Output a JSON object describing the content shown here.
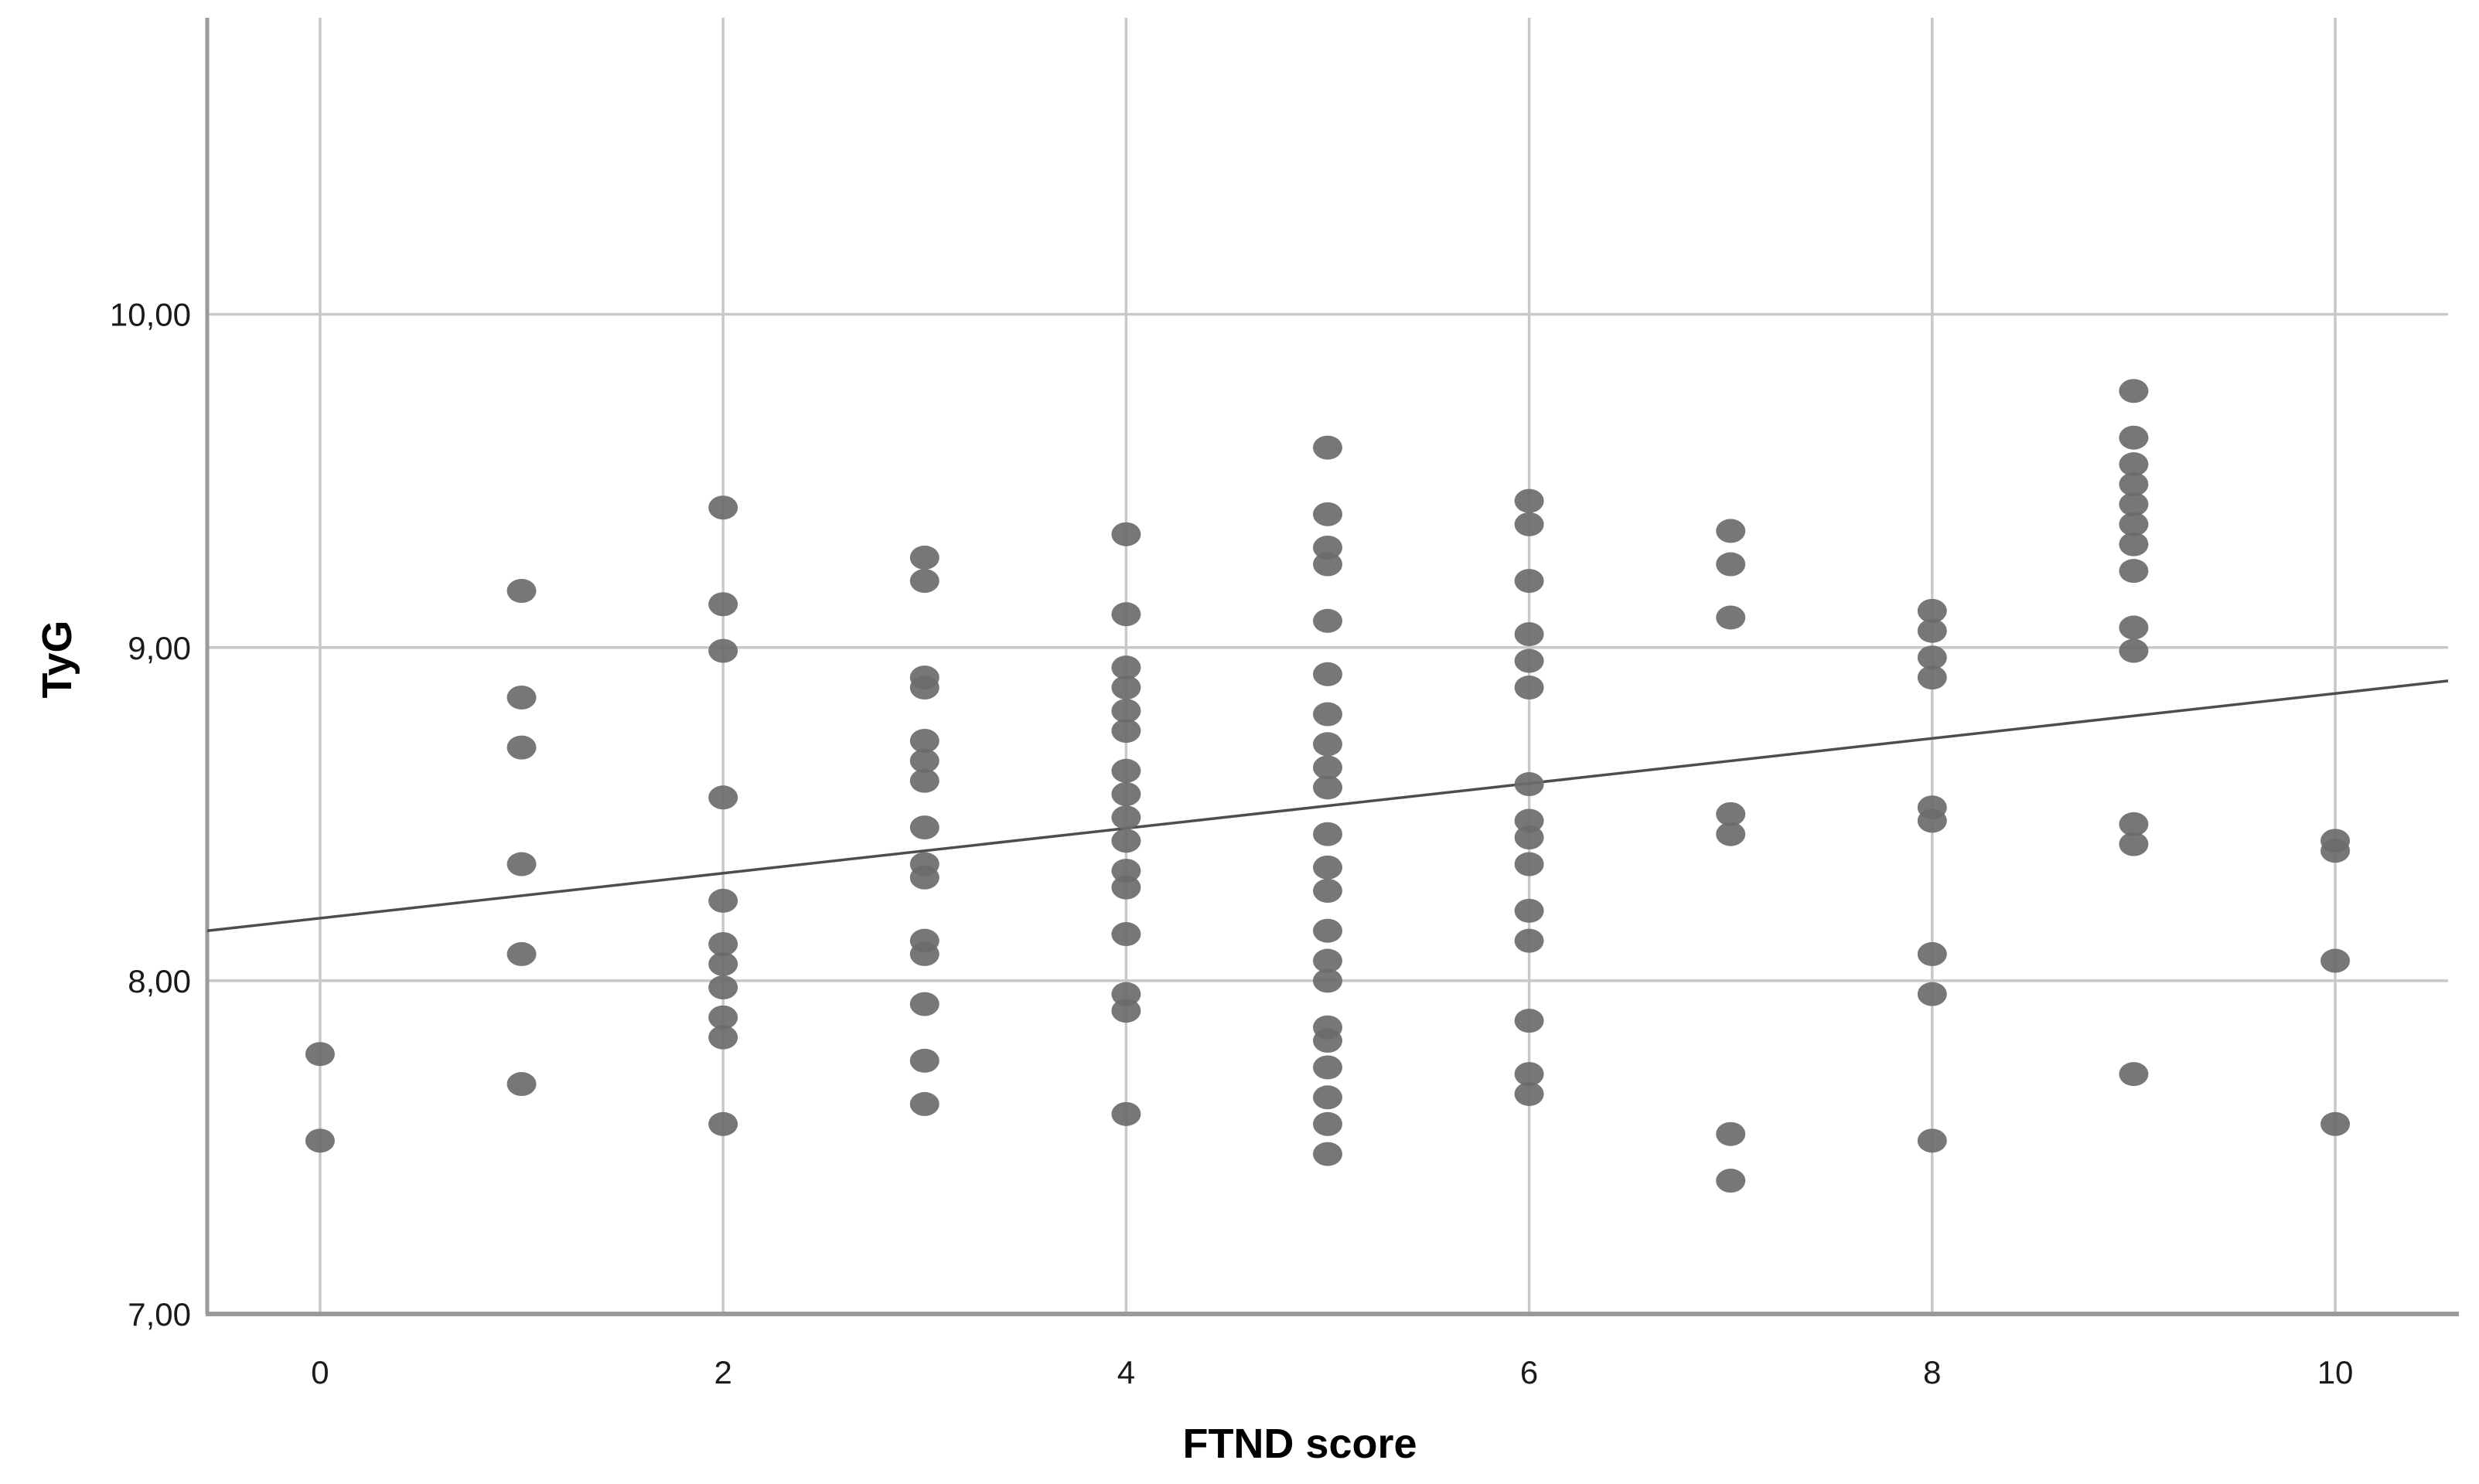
{
  "chart_data": {
    "type": "scatter",
    "title": "",
    "xlabel": "FTND score",
    "ylabel": "TyG",
    "xlim": [
      -0.56,
      10.56
    ],
    "ylim": [
      7.0,
      10.89
    ],
    "grid": true,
    "legend": "none",
    "decimal_separator": ",",
    "x_ticks": {
      "values": [
        0,
        2,
        4,
        6,
        8,
        10
      ],
      "labels": [
        "0",
        "2",
        "4",
        "6",
        "8",
        "10"
      ]
    },
    "y_ticks": {
      "values": [
        7,
        8,
        9,
        10
      ],
      "labels": [
        "7,00",
        "8,00",
        "9,00",
        "10,00"
      ]
    },
    "colors": {
      "background": "#ffffff",
      "grid": "#c8c8c8",
      "axis": "#9a9a9a",
      "point": "#6b6b6b",
      "fit_line": "#4d4d4d",
      "tick_label": "#1a1a1a",
      "axis_title": "#000000"
    },
    "fit_line": {
      "x1": -0.56,
      "y1": 8.15,
      "x2": 10.56,
      "y2": 8.9
    },
    "series": [
      {
        "name": "observations",
        "points": [
          [
            0,
            7.78
          ],
          [
            0,
            7.52
          ],
          [
            1,
            9.17
          ],
          [
            1,
            8.85
          ],
          [
            1,
            8.7
          ],
          [
            1,
            8.35
          ],
          [
            1,
            8.08
          ],
          [
            1,
            7.69
          ],
          [
            2,
            9.42
          ],
          [
            2,
            9.13
          ],
          [
            2,
            8.99
          ],
          [
            2,
            8.55
          ],
          [
            2,
            8.24
          ],
          [
            2,
            8.11
          ],
          [
            2,
            8.05
          ],
          [
            2,
            7.98
          ],
          [
            2,
            7.89
          ],
          [
            2,
            7.83
          ],
          [
            2,
            7.57
          ],
          [
            3,
            9.27
          ],
          [
            3,
            9.2
          ],
          [
            3,
            8.91
          ],
          [
            3,
            8.88
          ],
          [
            3,
            8.72
          ],
          [
            3,
            8.66
          ],
          [
            3,
            8.6
          ],
          [
            3,
            8.46
          ],
          [
            3,
            8.35
          ],
          [
            3,
            8.31
          ],
          [
            3,
            8.12
          ],
          [
            3,
            8.08
          ],
          [
            3,
            7.93
          ],
          [
            3,
            7.76
          ],
          [
            3,
            7.63
          ],
          [
            4,
            9.34
          ],
          [
            4,
            9.1
          ],
          [
            4,
            8.94
          ],
          [
            4,
            8.88
          ],
          [
            4,
            8.81
          ],
          [
            4,
            8.75
          ],
          [
            4,
            8.63
          ],
          [
            4,
            8.56
          ],
          [
            4,
            8.49
          ],
          [
            4,
            8.42
          ],
          [
            4,
            8.33
          ],
          [
            4,
            8.28
          ],
          [
            4,
            8.14
          ],
          [
            4,
            7.96
          ],
          [
            4,
            7.91
          ],
          [
            4,
            7.6
          ],
          [
            5,
            9.6
          ],
          [
            5,
            9.4
          ],
          [
            5,
            9.3
          ],
          [
            5,
            9.25
          ],
          [
            5,
            9.08
          ],
          [
            5,
            8.92
          ],
          [
            5,
            8.8
          ],
          [
            5,
            8.71
          ],
          [
            5,
            8.64
          ],
          [
            5,
            8.58
          ],
          [
            5,
            8.44
          ],
          [
            5,
            8.34
          ],
          [
            5,
            8.27
          ],
          [
            5,
            8.15
          ],
          [
            5,
            8.06
          ],
          [
            5,
            8.0
          ],
          [
            5,
            7.86
          ],
          [
            5,
            7.82
          ],
          [
            5,
            7.74
          ],
          [
            5,
            7.65
          ],
          [
            5,
            7.57
          ],
          [
            5,
            7.48
          ],
          [
            6,
            9.44
          ],
          [
            6,
            9.37
          ],
          [
            6,
            9.2
          ],
          [
            6,
            9.04
          ],
          [
            6,
            8.96
          ],
          [
            6,
            8.88
          ],
          [
            6,
            8.59
          ],
          [
            6,
            8.48
          ],
          [
            6,
            8.43
          ],
          [
            6,
            8.35
          ],
          [
            6,
            8.21
          ],
          [
            6,
            8.12
          ],
          [
            6,
            7.88
          ],
          [
            6,
            7.72
          ],
          [
            6,
            7.66
          ],
          [
            7,
            9.35
          ],
          [
            7,
            9.25
          ],
          [
            7,
            9.09
          ],
          [
            7,
            8.5
          ],
          [
            7,
            8.44
          ],
          [
            7,
            7.54
          ],
          [
            7,
            7.4
          ],
          [
            8,
            9.11
          ],
          [
            8,
            9.05
          ],
          [
            8,
            8.97
          ],
          [
            8,
            8.91
          ],
          [
            8,
            8.52
          ],
          [
            8,
            8.48
          ],
          [
            8,
            8.08
          ],
          [
            8,
            7.96
          ],
          [
            8,
            7.52
          ],
          [
            9,
            9.77
          ],
          [
            9,
            9.63
          ],
          [
            9,
            9.55
          ],
          [
            9,
            9.49
          ],
          [
            9,
            9.43
          ],
          [
            9,
            9.37
          ],
          [
            9,
            9.31
          ],
          [
            9,
            9.23
          ],
          [
            9,
            9.06
          ],
          [
            9,
            8.99
          ],
          [
            9,
            8.47
          ],
          [
            9,
            8.41
          ],
          [
            9,
            7.72
          ],
          [
            10,
            8.42
          ],
          [
            10,
            8.39
          ],
          [
            10,
            8.06
          ],
          [
            10,
            7.57
          ]
        ]
      }
    ]
  }
}
